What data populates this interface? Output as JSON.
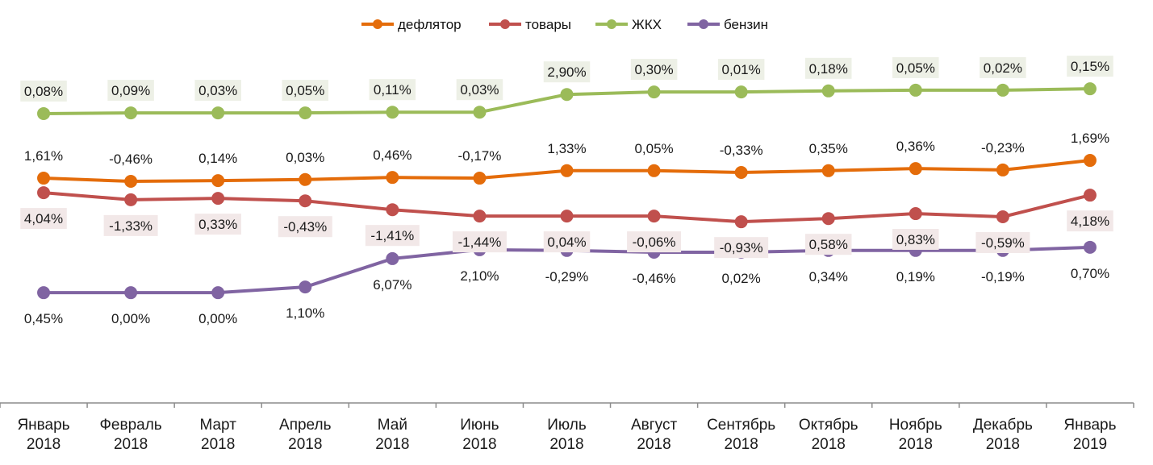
{
  "chart_data": {
    "type": "line",
    "title": "",
    "xlabel": "",
    "ylabel": "",
    "grid": false,
    "legend_position": "top-center",
    "y_axis_visible": false,
    "x": [
      [
        "Январь",
        "2018"
      ],
      [
        "Февраль",
        "2018"
      ],
      [
        "Март",
        "2018"
      ],
      [
        "Апрель",
        "2018"
      ],
      [
        "Май",
        "2018"
      ],
      [
        "Июнь",
        "2018"
      ],
      [
        "Июль",
        "2018"
      ],
      [
        "Август",
        "2018"
      ],
      [
        "Сентябрь",
        "2018"
      ],
      [
        "Октябрь",
        "2018"
      ],
      [
        "Ноябрь",
        "2018"
      ],
      [
        "Декабрь",
        "2018"
      ],
      [
        "Январь",
        "2019"
      ]
    ],
    "level_range": [
      0,
      100
    ],
    "series": [
      {
        "name": "дефлятор",
        "color": "#E46C0A",
        "label_bg": "",
        "label_position": "above",
        "labels": [
          "1,61%",
          "-0,46%",
          "0,14%",
          "0,03%",
          "0,46%",
          "-0,17%",
          "1,33%",
          "0,05%",
          "-0,33%",
          "0,35%",
          "0,36%",
          "-0,23%",
          "1,69%"
        ],
        "values": [
          1.61,
          -0.46,
          0.14,
          0.03,
          0.46,
          -0.17,
          1.33,
          0.05,
          -0.33,
          0.35,
          0.36,
          -0.23,
          1.69
        ],
        "levels": [
          63.4,
          62.5,
          62.7,
          63.0,
          63.6,
          63.4,
          65.5,
          65.5,
          65.0,
          65.5,
          66.1,
          65.7,
          68.4
        ]
      },
      {
        "name": "товары",
        "color": "#C0504D",
        "label_bg": "#F2E8E8",
        "label_position": "below",
        "labels": [
          "4,04%",
          "-1,33%",
          "0,33%",
          "-0,43%",
          "-1,41%",
          "-1,44%",
          "0,04%",
          "-0,06%",
          "-0,93%",
          "0,58%",
          "0,83%",
          "-0,59%",
          "4,18%"
        ],
        "values": [
          4.04,
          -1.33,
          0.33,
          -0.43,
          -1.41,
          -1.44,
          0.04,
          -0.06,
          -0.93,
          0.58,
          0.83,
          -0.59,
          4.18
        ],
        "levels": [
          59.3,
          57.3,
          57.7,
          57.0,
          54.5,
          52.7,
          52.7,
          52.7,
          51.1,
          52.0,
          53.4,
          52.5,
          58.6
        ]
      },
      {
        "name": "ЖКХ",
        "color": "#9BBB59",
        "label_bg": "#EDF0E6",
        "label_position": "above",
        "labels": [
          "0,08%",
          "0,09%",
          "0,03%",
          "0,05%",
          "0,11%",
          "0,03%",
          "2,90%",
          "0,30%",
          "0,01%",
          "0,18%",
          "0,05%",
          "0,02%",
          "0,15%"
        ],
        "values": [
          0.08,
          0.09,
          0.03,
          0.05,
          0.11,
          0.03,
          2.9,
          0.3,
          0.01,
          0.18,
          0.05,
          0.02,
          0.15
        ],
        "levels": [
          81.6,
          81.8,
          81.8,
          81.8,
          82.0,
          82.0,
          87.0,
          87.7,
          87.7,
          88.0,
          88.2,
          88.2,
          88.6
        ]
      },
      {
        "name": "бензин",
        "color": "#8064A2",
        "label_bg": "",
        "label_position": "below",
        "labels": [
          "0,45%",
          "0,00%",
          "0,00%",
          "1,10%",
          "6,07%",
          "2,10%",
          "-0,29%",
          "-0,46%",
          "0,02%",
          "0,34%",
          "0,19%",
          "-0,19%",
          "0,70%"
        ],
        "values": [
          0.45,
          0.0,
          0.0,
          1.1,
          6.07,
          2.1,
          -0.29,
          -0.46,
          0.02,
          0.34,
          0.19,
          -0.19,
          0.7
        ],
        "levels": [
          31.1,
          31.1,
          31.1,
          32.7,
          40.7,
          43.2,
          43.0,
          42.5,
          42.5,
          43.0,
          43.0,
          43.0,
          43.9
        ]
      }
    ]
  }
}
